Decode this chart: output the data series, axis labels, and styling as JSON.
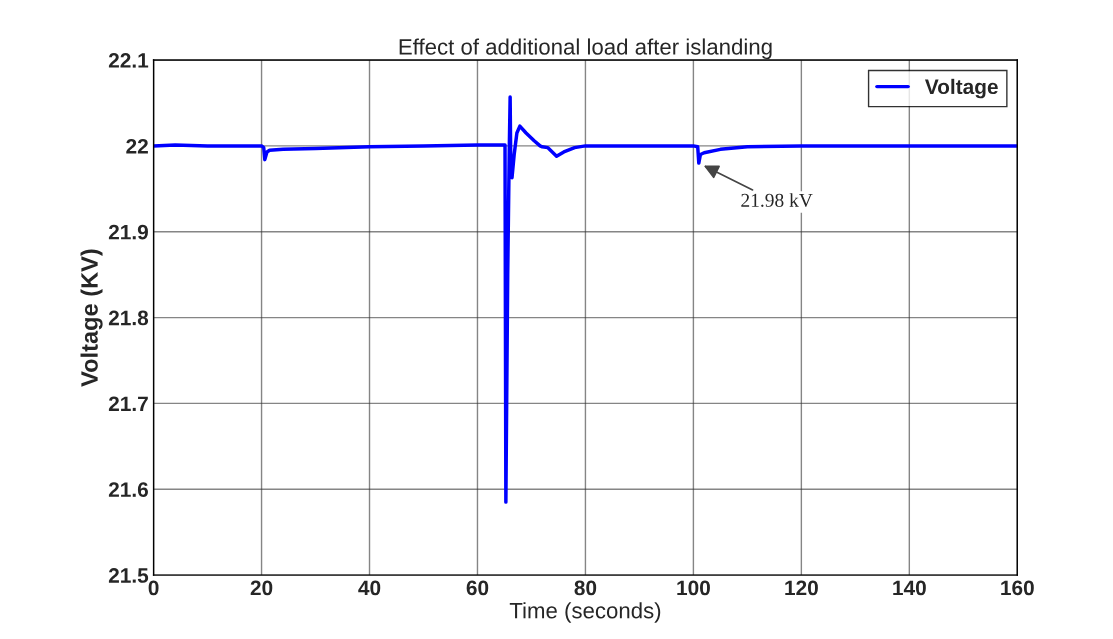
{
  "chart_data": {
    "type": "line",
    "title": "Effect of additional load after islanding",
    "xlabel": "Time (seconds)",
    "ylabel": "Voltage (KV)",
    "series": [
      {
        "name": "Voltage",
        "color": "#0000ff",
        "x": [
          0,
          4,
          10,
          20,
          20.4,
          20.6,
          21,
          21.5,
          24,
          30,
          40,
          50,
          60,
          65.1,
          65.26,
          65.6,
          65.9,
          66.05,
          66.15,
          66.4,
          66.8,
          67.3,
          67.85,
          69,
          70.5,
          71.6,
          72,
          73,
          74.65,
          76,
          78,
          80,
          90,
          100,
          100.8,
          101,
          101.3,
          102,
          105,
          110,
          120,
          140,
          160
        ],
        "values": [
          22.0,
          22.001,
          22.0,
          22.0,
          21.998,
          21.984,
          21.993,
          21.995,
          21.996,
          21.997,
          21.999,
          22.0,
          22.001,
          22.001,
          21.585,
          21.85,
          22.0,
          22.057,
          21.99,
          21.963,
          21.99,
          22.015,
          22.023,
          22.015,
          22.006,
          22.0,
          21.999,
          21.998,
          21.988,
          21.993,
          21.998,
          22.0,
          22.0,
          22.0,
          21.999,
          21.98,
          21.99,
          21.992,
          21.996,
          21.999,
          22.0,
          22.0,
          22.0
        ]
      }
    ],
    "xlim": [
      0,
      160
    ],
    "ylim": [
      21.5,
      22.1
    ],
    "xticks": [
      0,
      20,
      40,
      60,
      80,
      100,
      120,
      140,
      160
    ],
    "yticks": [
      21.5,
      21.6,
      21.7,
      21.8,
      21.9,
      22,
      22.1
    ],
    "grid": true,
    "legend": "top right",
    "line_style": "solid",
    "marker": "none",
    "annotations": [
      {
        "text": "21.98 kV",
        "x": 101,
        "y": 21.98
      }
    ]
  }
}
